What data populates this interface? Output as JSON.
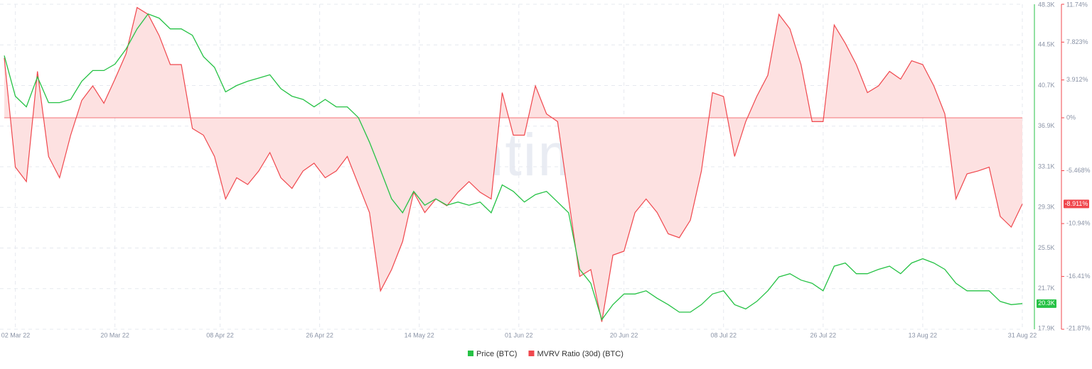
{
  "chart_data": {
    "type": "dual-axis-line-area",
    "watermark": "santiment",
    "x": [
      "2022-02-28",
      "2022-03-02",
      "2022-03-04",
      "2022-03-06",
      "2022-03-08",
      "2022-03-10",
      "2022-03-12",
      "2022-03-14",
      "2022-03-16",
      "2022-03-18",
      "2022-03-20",
      "2022-03-22",
      "2022-03-24",
      "2022-03-26",
      "2022-03-28",
      "2022-03-30",
      "2022-04-01",
      "2022-04-03",
      "2022-04-05",
      "2022-04-07",
      "2022-04-09",
      "2022-04-11",
      "2022-04-13",
      "2022-04-15",
      "2022-04-17",
      "2022-04-19",
      "2022-04-21",
      "2022-04-23",
      "2022-04-25",
      "2022-04-27",
      "2022-04-29",
      "2022-05-01",
      "2022-05-03",
      "2022-05-05",
      "2022-05-07",
      "2022-05-09",
      "2022-05-11",
      "2022-05-13",
      "2022-05-15",
      "2022-05-17",
      "2022-05-19",
      "2022-05-21",
      "2022-05-23",
      "2022-05-25",
      "2022-05-27",
      "2022-05-29",
      "2022-05-31",
      "2022-06-02",
      "2022-06-04",
      "2022-06-06",
      "2022-06-08",
      "2022-06-10",
      "2022-06-12",
      "2022-06-14",
      "2022-06-16",
      "2022-06-18",
      "2022-06-20",
      "2022-06-22",
      "2022-06-24",
      "2022-06-26",
      "2022-06-28",
      "2022-06-30",
      "2022-07-02",
      "2022-07-04",
      "2022-07-06",
      "2022-07-08",
      "2022-07-10",
      "2022-07-12",
      "2022-07-14",
      "2022-07-16",
      "2022-07-18",
      "2022-07-20",
      "2022-07-22",
      "2022-07-24",
      "2022-07-26",
      "2022-07-28",
      "2022-07-30",
      "2022-08-01",
      "2022-08-03",
      "2022-08-05",
      "2022-08-07",
      "2022-08-09",
      "2022-08-11",
      "2022-08-13",
      "2022-08-15",
      "2022-08-17",
      "2022-08-19",
      "2022-08-21",
      "2022-08-23",
      "2022-08-25",
      "2022-08-27",
      "2022-08-29",
      "2022-08-31"
    ],
    "xlim": [
      "2022-02-28",
      "2022-08-31"
    ],
    "xticks": [
      {
        "value": "2022-03-02",
        "label": "02 Mar 22"
      },
      {
        "value": "2022-03-20",
        "label": "20 Mar 22"
      },
      {
        "value": "2022-04-08",
        "label": "08 Apr 22"
      },
      {
        "value": "2022-04-26",
        "label": "26 Apr 22"
      },
      {
        "value": "2022-05-14",
        "label": "14 May 22"
      },
      {
        "value": "2022-06-01",
        "label": "01 Jun 22"
      },
      {
        "value": "2022-06-20",
        "label": "20 Jun 22"
      },
      {
        "value": "2022-07-08",
        "label": "08 Jul 22"
      },
      {
        "value": "2022-07-26",
        "label": "26 Jul 22"
      },
      {
        "value": "2022-08-13",
        "label": "13 Aug 22"
      },
      {
        "value": "2022-08-31",
        "label": "31 Aug 22"
      }
    ],
    "ylim": [
      17900,
      48300
    ],
    "yticks": [
      {
        "value": 48300,
        "label": "48.3K"
      },
      {
        "value": 44500,
        "label": "44.5K"
      },
      {
        "value": 40700,
        "label": "40.7K"
      },
      {
        "value": 36900,
        "label": "36.9K"
      },
      {
        "value": 33100,
        "label": "33.1K"
      },
      {
        "value": 29300,
        "label": "29.3K"
      },
      {
        "value": 25500,
        "label": "25.5K"
      },
      {
        "value": 21700,
        "label": "21.7K"
      },
      {
        "value": 17900,
        "label": "17.9K"
      }
    ],
    "y2lim": [
      -21.87,
      11.74
    ],
    "y2ticks": [
      {
        "value": 11.74,
        "label": "11.74%"
      },
      {
        "value": 7.823,
        "label": "7.823%"
      },
      {
        "value": 3.912,
        "label": "3.912%"
      },
      {
        "value": 0,
        "label": "0%"
      },
      {
        "value": -5.468,
        "label": "-5.468%"
      },
      {
        "value": -10.94,
        "label": "-10.94%"
      },
      {
        "value": -16.41,
        "label": "-16.41%"
      },
      {
        "value": -21.87,
        "label": "-21.87%"
      }
    ],
    "grid": true,
    "series": [
      {
        "name": "Price (BTC)",
        "color": "#26c245",
        "last_label": "20.3K",
        "values": [
          43500,
          39700,
          38700,
          41500,
          39100,
          39100,
          39400,
          41100,
          42100,
          42100,
          42700,
          44100,
          46000,
          47400,
          47000,
          46000,
          46000,
          45400,
          43400,
          42400,
          40100,
          40700,
          41100,
          41400,
          41700,
          40400,
          39700,
          39400,
          38700,
          39400,
          38700,
          38700,
          37700,
          35400,
          32800,
          30100,
          28800,
          30800,
          29500,
          30100,
          29500,
          29800,
          29500,
          29800,
          28800,
          31400,
          30800,
          29800,
          30500,
          30800,
          29800,
          28800,
          23500,
          22200,
          18800,
          20200,
          21200,
          21200,
          21500,
          20800,
          20200,
          19500,
          19500,
          20200,
          21200,
          21500,
          20200,
          19800,
          20500,
          21500,
          22800,
          23100,
          22500,
          22200,
          21500,
          23800,
          24100,
          23100,
          23100,
          23500,
          23800,
          23100,
          24100,
          24500,
          24100,
          23500,
          22200,
          21500,
          21500,
          21500,
          20500,
          20200,
          20300
        ]
      },
      {
        "name": "MVRV Ratio (30d) (BTC)",
        "color": "#f0474d",
        "fill": "#fde1e1",
        "axis": "y2",
        "last_label": "-8.911%",
        "values": [
          6.2,
          -5.1,
          -6.6,
          4.8,
          -4.0,
          -6.2,
          -1.8,
          1.8,
          3.3,
          1.5,
          4.0,
          6.6,
          11.4,
          10.7,
          8.5,
          5.5,
          5.5,
          -1.1,
          -1.8,
          -4.0,
          -8.4,
          -6.2,
          -6.9,
          -5.5,
          -3.6,
          -6.2,
          -7.3,
          -5.5,
          -4.7,
          -6.2,
          -5.5,
          -4.0,
          -6.9,
          -9.8,
          -17.9,
          -15.7,
          -12.8,
          -7.7,
          -9.8,
          -8.4,
          -9.1,
          -7.7,
          -6.6,
          -7.7,
          -8.4,
          2.6,
          -1.8,
          -1.8,
          3.3,
          0.4,
          -0.4,
          -8.4,
          -16.4,
          -15.7,
          -21.1,
          -14.2,
          -13.8,
          -9.8,
          -8.4,
          -9.8,
          -12.0,
          -12.4,
          -10.6,
          -5.5,
          2.6,
          2.2,
          -4.0,
          -0.4,
          2.2,
          4.4,
          10.7,
          9.2,
          5.5,
          -0.4,
          -0.4,
          9.6,
          7.7,
          5.5,
          2.6,
          3.3,
          4.8,
          4.0,
          5.9,
          5.5,
          3.3,
          0.4,
          -8.4,
          -5.8,
          -5.5,
          -5.1,
          -10.2,
          -11.3,
          -8.911
        ]
      }
    ]
  }
}
